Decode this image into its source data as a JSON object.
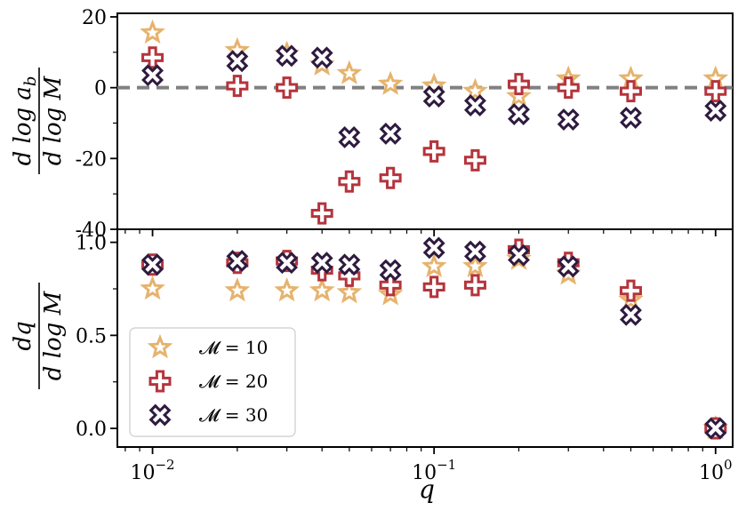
{
  "chart_data": [
    {
      "type": "scatter",
      "panel": "top",
      "ylabel": "d log a_b / d log M",
      "ylabel_parts": {
        "num": "d log a",
        "num_sub": "b",
        "den": "d log M"
      },
      "xscale": "log",
      "xlim": [
        0.0075,
        1.15
      ],
      "ylim": [
        -40,
        21
      ],
      "yticks": [
        20,
        0,
        -20,
        -40
      ],
      "ytick_labels": [
        "20",
        "0",
        "-20",
        "-40"
      ],
      "reference_line": {
        "y": 0,
        "style": "dashed",
        "color": "#808080"
      },
      "series": [
        {
          "name": "𝓜 = 10",
          "marker": "star",
          "color": "#E6B36E",
          "x": [
            0.01,
            0.02,
            0.03,
            0.04,
            0.05,
            0.07,
            0.1,
            0.14,
            0.2,
            0.3,
            0.5,
            1.0
          ],
          "y": [
            15.5,
            10.5,
            9.5,
            6.5,
            4.0,
            1.0,
            0.5,
            -1.0,
            -2.5,
            2.5,
            2.5,
            2.5
          ]
        },
        {
          "name": "𝓜 = 20",
          "marker": "plus",
          "color": "#B5343C",
          "x": [
            0.01,
            0.02,
            0.03,
            0.04,
            0.05,
            0.07,
            0.1,
            0.14,
            0.2,
            0.3,
            0.5,
            1.0
          ],
          "y": [
            8.5,
            0.5,
            0.0,
            -35.5,
            -26.5,
            -25.5,
            -18.0,
            -20.5,
            1.0,
            0.0,
            -1.0,
            -1.0
          ]
        },
        {
          "name": "𝓜 = 30",
          "marker": "x",
          "color": "#2E1B3F",
          "x": [
            0.01,
            0.02,
            0.03,
            0.04,
            0.05,
            0.07,
            0.1,
            0.14,
            0.2,
            0.3,
            0.5,
            1.0
          ],
          "y": [
            3.5,
            7.5,
            9.0,
            8.5,
            -14.0,
            -13.0,
            -2.5,
            -5.0,
            -7.5,
            -9.0,
            -8.5,
            -6.5
          ]
        }
      ]
    },
    {
      "type": "scatter",
      "panel": "bottom",
      "xlabel": "q",
      "ylabel": "dq / d log M",
      "ylabel_parts": {
        "num": "dq",
        "den": "d log M"
      },
      "xscale": "log",
      "xlim": [
        0.0075,
        1.15
      ],
      "ylim": [
        -0.1,
        1.07
      ],
      "yticks": [
        1.0,
        0.5,
        0.0
      ],
      "ytick_labels": [
        "1.0",
        "0.5",
        "0.0"
      ],
      "xticks": [
        0.01,
        0.1,
        1.0
      ],
      "xtick_labels": [
        {
          "base": "10",
          "exp": "−2"
        },
        {
          "base": "10",
          "exp": "−1"
        },
        {
          "base": "10",
          "exp": "0"
        }
      ],
      "legend": {
        "placement": "lower-left",
        "entries": [
          "𝓜 = 10",
          "𝓜 = 20",
          "𝓜 = 30"
        ]
      },
      "series": [
        {
          "name": "𝓜 = 10",
          "marker": "star",
          "color": "#E6B36E",
          "x": [
            0.01,
            0.02,
            0.03,
            0.04,
            0.05,
            0.07,
            0.1,
            0.14,
            0.2,
            0.3,
            0.5,
            1.0
          ],
          "y": [
            0.75,
            0.74,
            0.74,
            0.74,
            0.73,
            0.72,
            0.87,
            0.87,
            0.91,
            0.83,
            0.69,
            0.0
          ]
        },
        {
          "name": "𝓜 = 20",
          "marker": "plus",
          "color": "#B5343C",
          "x": [
            0.01,
            0.02,
            0.03,
            0.04,
            0.05,
            0.07,
            0.1,
            0.14,
            0.2,
            0.3,
            0.5,
            1.0
          ],
          "y": [
            0.88,
            0.89,
            0.9,
            0.85,
            0.82,
            0.77,
            0.76,
            0.77,
            0.96,
            0.89,
            0.74,
            0.0
          ]
        },
        {
          "name": "𝓜 = 30",
          "marker": "x",
          "color": "#2E1B3F",
          "x": [
            0.01,
            0.02,
            0.03,
            0.04,
            0.05,
            0.07,
            0.1,
            0.14,
            0.2,
            0.3,
            0.5,
            1.0
          ],
          "y": [
            0.88,
            0.9,
            0.89,
            0.89,
            0.88,
            0.85,
            0.97,
            0.95,
            0.93,
            0.87,
            0.61,
            0.0
          ]
        }
      ]
    }
  ]
}
